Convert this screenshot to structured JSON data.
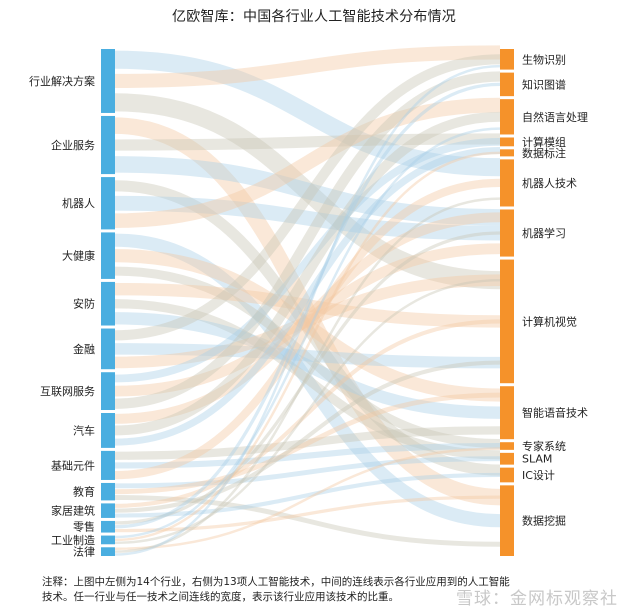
{
  "title": "亿欧智库：中国各行业人工智能技术分布情况",
  "note": "注释：上图中左侧为14个行业，右侧为13项人工智能技术，中间的连线表示各行业应用到的人工智能技术。任一行业与任一技术之间连线的宽度，表示该行业应用该技术的比重。",
  "watermark": "雪球：金网标观察社",
  "colors": {
    "industry": "#4aaee0",
    "technology": "#f5922a",
    "link_blue": "#a9cfe6",
    "link_orange": "#f3c9a3",
    "link_grey": "#c9c6b5"
  },
  "chart_data": {
    "type": "sankey",
    "left_nodes": [
      {
        "name": "行业解决方案",
        "weight": 11
      },
      {
        "name": "企业服务",
        "weight": 10
      },
      {
        "name": "机器人",
        "weight": 9
      },
      {
        "name": "大健康",
        "weight": 8
      },
      {
        "name": "安防",
        "weight": 7.5
      },
      {
        "name": "金融",
        "weight": 7
      },
      {
        "name": "互联网服务",
        "weight": 6.5
      },
      {
        "name": "汽车",
        "weight": 6
      },
      {
        "name": "基础元件",
        "weight": 5
      },
      {
        "name": "教育",
        "weight": 3
      },
      {
        "name": "家居建筑",
        "weight": 2.5
      },
      {
        "name": "零售",
        "weight": 2
      },
      {
        "name": "工业制造",
        "weight": 1.5
      },
      {
        "name": "法律",
        "weight": 1.5
      }
    ],
    "right_nodes": [
      {
        "name": "生物识别",
        "weight": 3.5
      },
      {
        "name": "知识图谱",
        "weight": 4
      },
      {
        "name": "自然语言处理",
        "weight": 6
      },
      {
        "name": "计算模组",
        "weight": 1.5
      },
      {
        "name": "数据标注",
        "weight": 1.2
      },
      {
        "name": "机器人技术",
        "weight": 8
      },
      {
        "name": "机器学习",
        "weight": 8
      },
      {
        "name": "计算机视觉",
        "weight": 21
      },
      {
        "name": "智能语音技术",
        "weight": 9
      },
      {
        "name": "专家系统",
        "weight": 1.3
      },
      {
        "name": "SLAM",
        "weight": 2
      },
      {
        "name": "IC设计",
        "weight": 2.5
      },
      {
        "name": "数据挖掘",
        "weight": 12
      }
    ]
  }
}
